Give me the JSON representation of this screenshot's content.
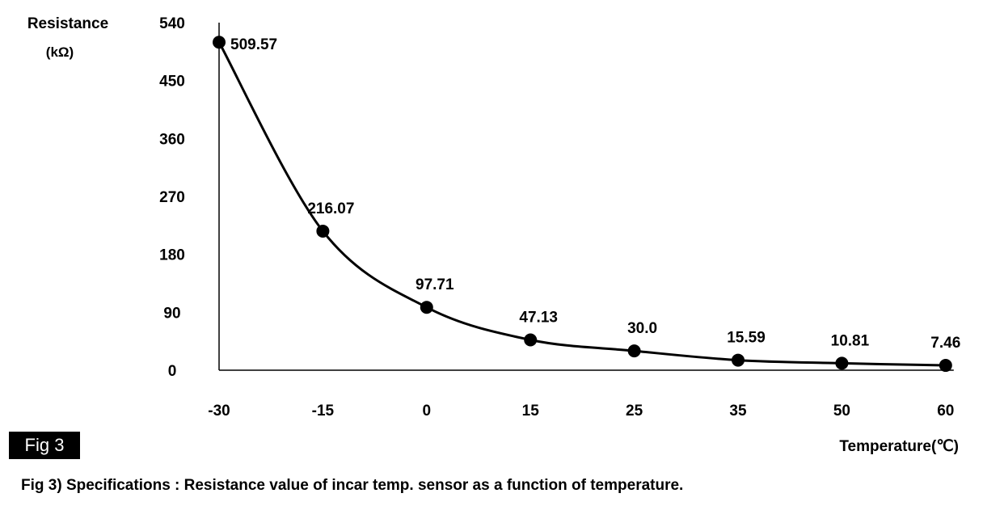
{
  "chart_data": {
    "type": "line",
    "title": "",
    "xlabel": "Temperature(℃)",
    "ylabel": "Resistance",
    "ylabel_unit": "(kΩ)",
    "categories": [
      "-30",
      "-15",
      "0",
      "15",
      "25",
      "35",
      "50",
      "60"
    ],
    "values": [
      509.57,
      216.07,
      97.71,
      47.13,
      30.0,
      15.59,
      10.81,
      7.46
    ],
    "data_labels": [
      "509.57",
      "216.07",
      "97.71",
      "47.13",
      "30.0",
      "15.59",
      "10.81",
      "7.46"
    ],
    "yticks": [
      "0",
      "90",
      "180",
      "270",
      "360",
      "450",
      "540"
    ],
    "ylim": [
      0,
      540
    ],
    "grid": false,
    "legend": "none",
    "color": "#000000"
  },
  "figure": {
    "badge": "Fig 3",
    "caption": "Fig 3) Specifications : Resistance value of incar temp. sensor as a function of temperature."
  }
}
